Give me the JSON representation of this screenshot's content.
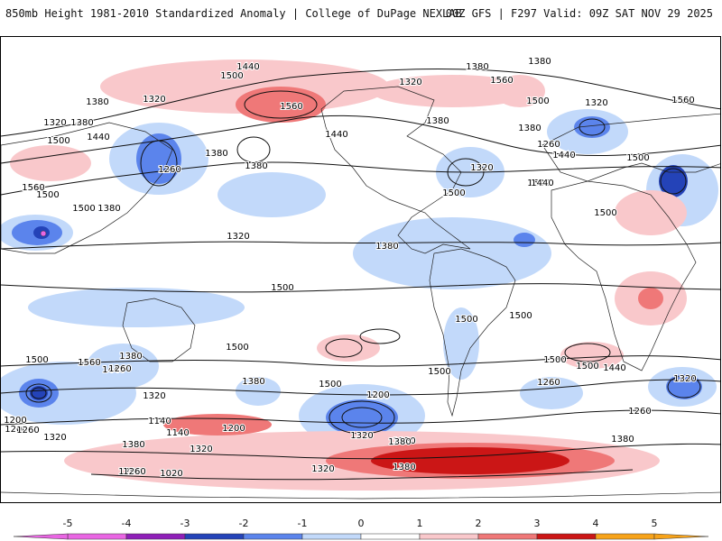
{
  "header": {
    "left_title": "850mb Height 1981-2010 Standardized Anomaly | College of DuPage NEXLAB",
    "right_title": "00Z GFS | F297 Valid: 09Z SAT NOV 29 2025"
  },
  "map": {
    "contour_labels": [
      "1380",
      "1440",
      "1500",
      "1560",
      "1320",
      "1380",
      "1500",
      "1440",
      "1260",
      "1320",
      "1380",
      "1380",
      "1320",
      "1560",
      "1500",
      "1440",
      "1380",
      "1380",
      "1500",
      "1380",
      "1320",
      "1320",
      "1380",
      "1260",
      "1440",
      "1500",
      "1500",
      "1560",
      "1500",
      "1500",
      "1380",
      "1320",
      "1380",
      "1440",
      "1500",
      "1560",
      "1500",
      "1500",
      "1500",
      "1500",
      "1500",
      "1500",
      "1500",
      "1440",
      "1560",
      "1500",
      "1380",
      "1440",
      "1500",
      "1380",
      "1260",
      "1260",
      "1380",
      "1320",
      "1140",
      "1200",
      "1140",
      "1320",
      "1260",
      "1200",
      "1200",
      "1260",
      "1320",
      "1320",
      "1380",
      "1380",
      "1200",
      "1020",
      "1320",
      "1320",
      "1320",
      "1200",
      "1380",
      "1380",
      "1260"
    ],
    "colors": {
      "neg5": "#e966e3",
      "neg4": "#8f1fb8",
      "neg3": "#2443b8",
      "neg2": "#5b84ec",
      "neg1": "#c2d9fa",
      "zero": "#ffffff",
      "pos1": "#f9c8cb",
      "pos2": "#ef7878",
      "pos3": "#cb1616",
      "pos4": "#f7a31a",
      "pos5": "#f7a31a"
    }
  },
  "colorbar": {
    "ticks": [
      "-5",
      "-4",
      "-3",
      "-2",
      "-1",
      "0",
      "1",
      "2",
      "3",
      "4",
      "5"
    ],
    "colors": [
      "#e966e3",
      "#8f1fb8",
      "#2443b8",
      "#5b84ec",
      "#c2d9fa",
      "#ffffff",
      "#f9c8cb",
      "#ef7878",
      "#cb1616",
      "#f7a31a"
    ]
  }
}
